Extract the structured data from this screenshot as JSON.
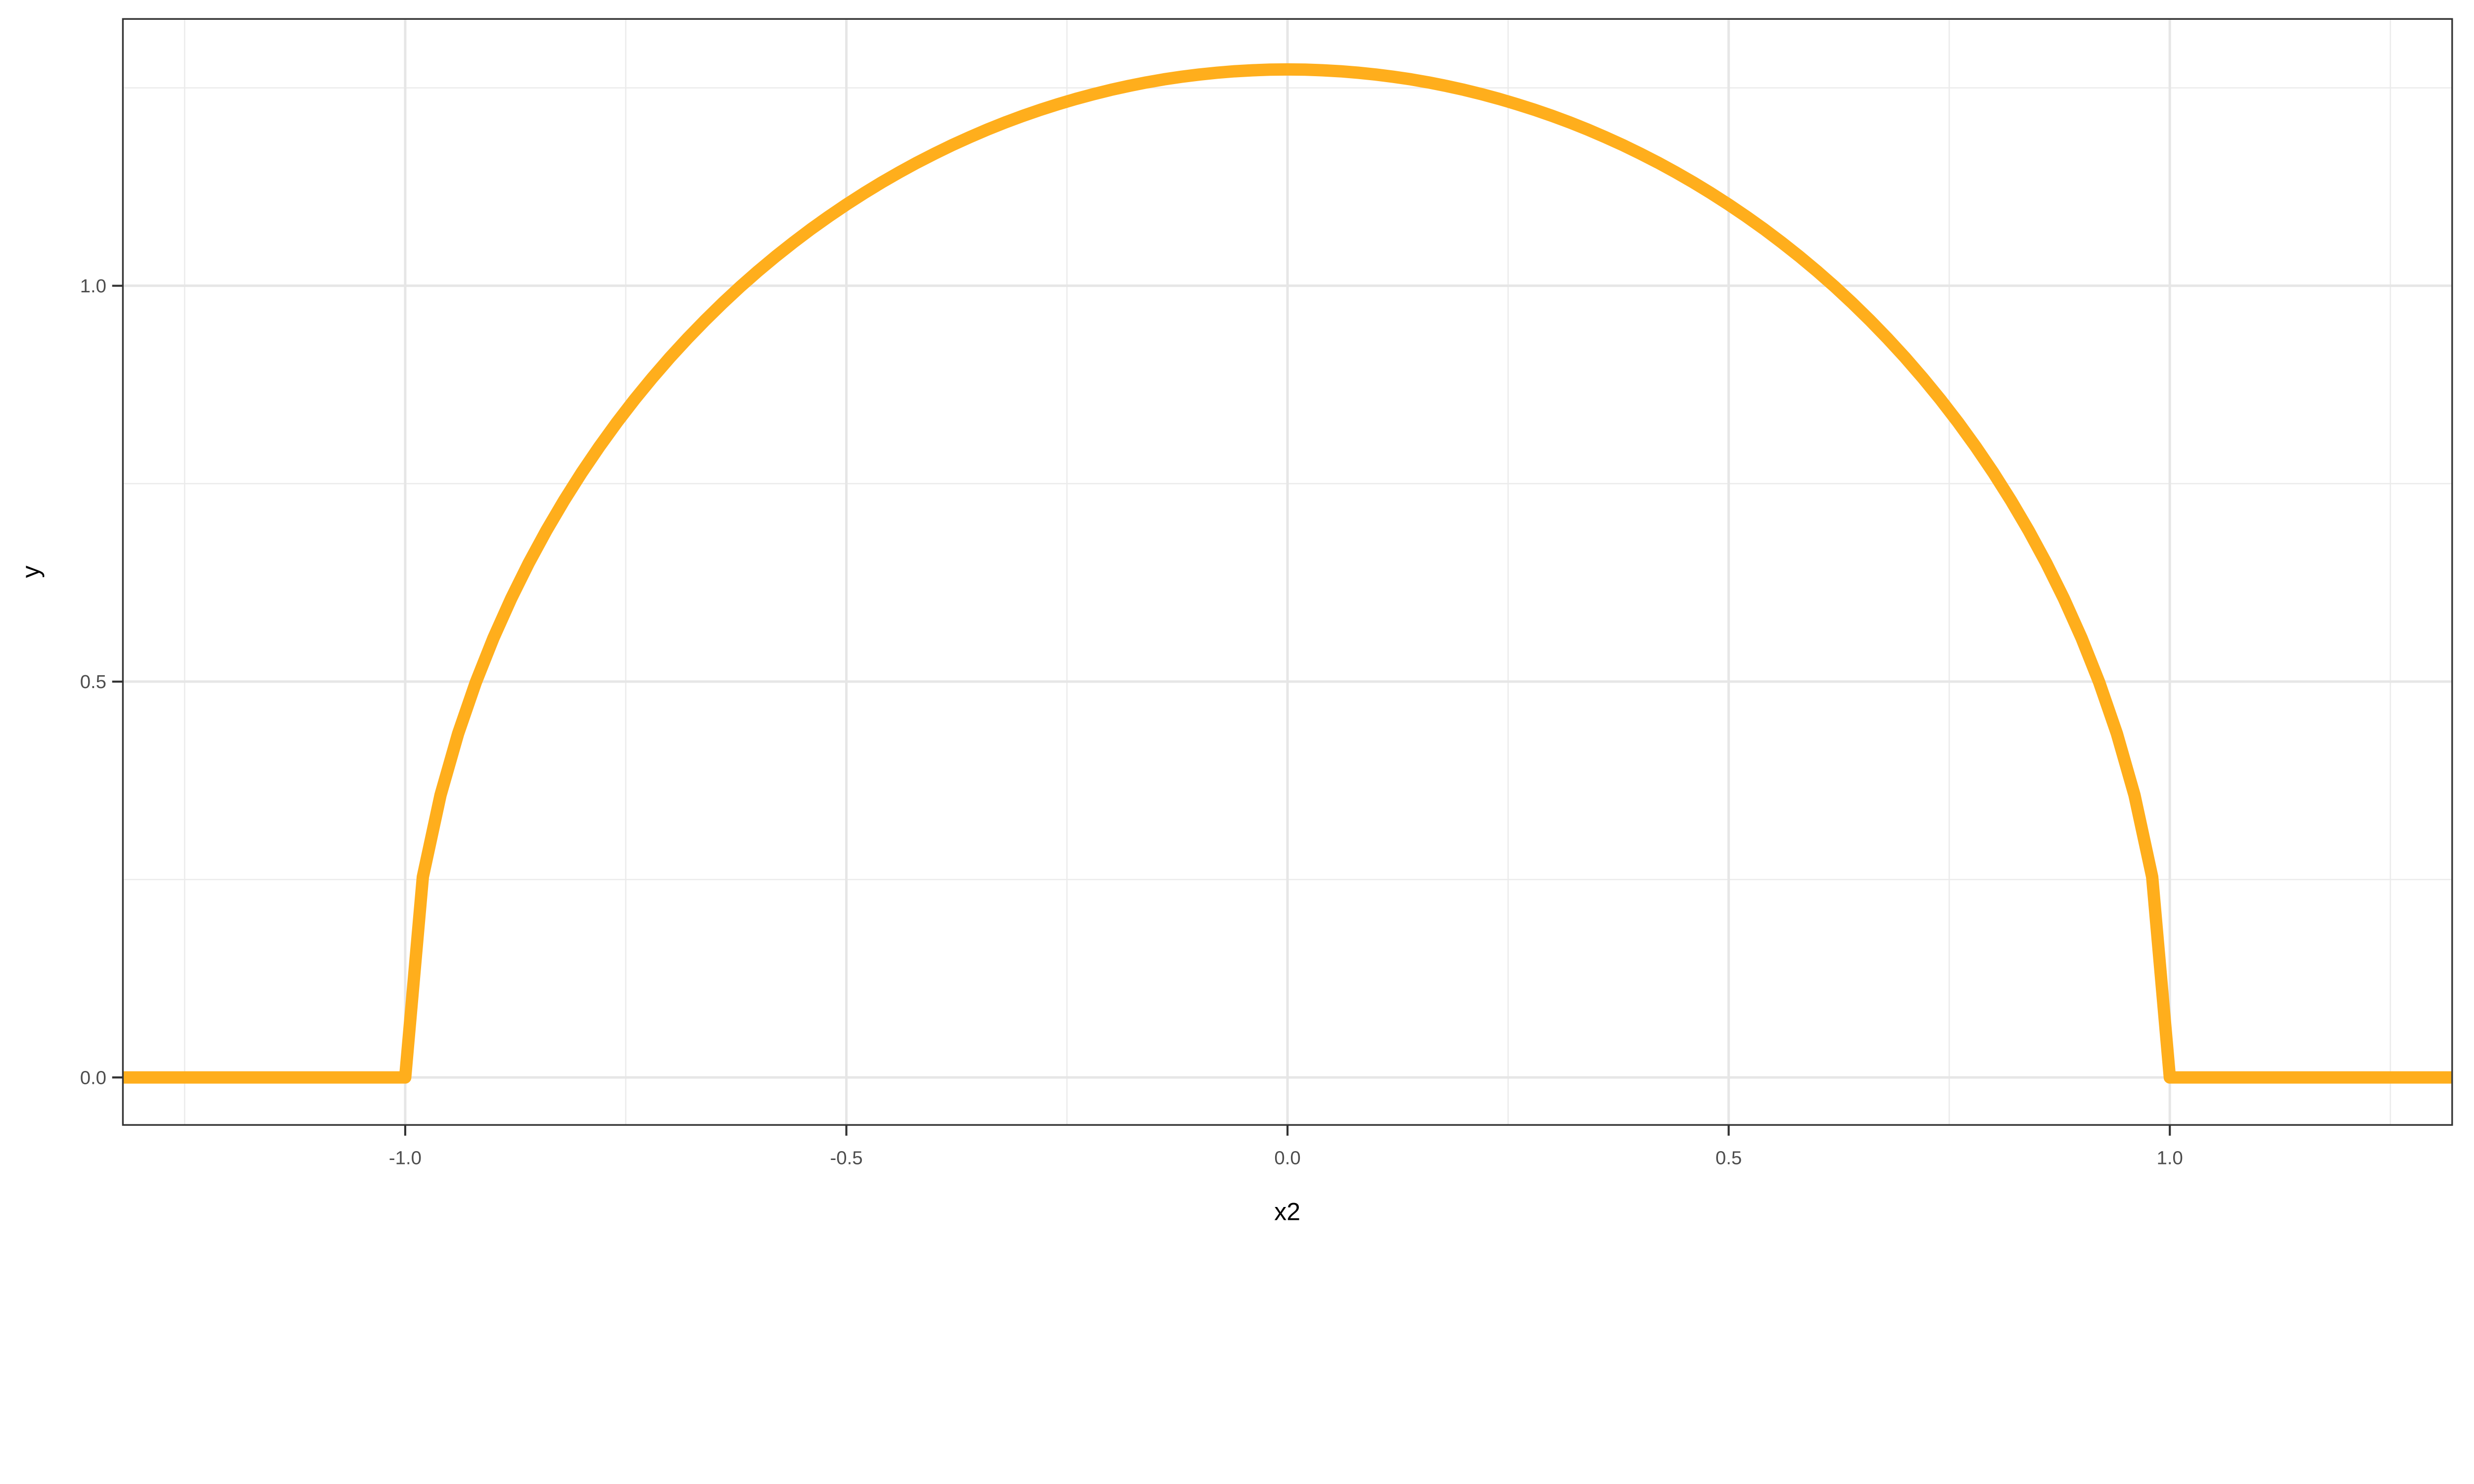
{
  "chart_data": {
    "type": "line",
    "title": "",
    "xlabel": "x2",
    "ylabel": "y",
    "xlim": [
      -1.32,
      1.32
    ],
    "ylim": [
      -0.06,
      1.337
    ],
    "grid": true,
    "x_ticks": [
      -1.0,
      -0.5,
      0.0,
      0.5,
      1.0
    ],
    "x_tick_labels": [
      "-1.0",
      "-0.5",
      "0.0",
      "0.5",
      "1.0"
    ],
    "y_ticks": [
      0.0,
      0.5,
      1.0
    ],
    "y_tick_labels": [
      "0.0",
      "0.5",
      "1.0"
    ],
    "line_color": "#FFAE1C",
    "series": [
      {
        "x": [
          -1.32,
          -1.0,
          -0.98,
          -0.96,
          -0.94,
          -0.92,
          -0.9,
          -0.88,
          -0.86,
          -0.84,
          -0.82,
          -0.8,
          -0.78,
          -0.76,
          -0.74,
          -0.72,
          -0.7,
          -0.68,
          -0.66,
          -0.64,
          -0.62,
          -0.6,
          -0.58,
          -0.56,
          -0.54,
          -0.52,
          -0.5,
          -0.48,
          -0.46,
          -0.44,
          -0.42,
          -0.4,
          -0.38,
          -0.36,
          -0.34,
          -0.32,
          -0.3,
          -0.28,
          -0.26,
          -0.24,
          -0.22,
          -0.2,
          -0.18,
          -0.16,
          -0.14,
          -0.12,
          -0.1,
          -0.08,
          -0.06,
          -0.04,
          -0.02,
          0.0,
          0.02,
          0.04,
          0.06,
          0.08,
          0.1,
          0.12,
          0.14,
          0.16,
          0.18,
          0.2,
          0.22,
          0.24,
          0.26,
          0.28,
          0.3,
          0.32,
          0.34,
          0.36,
          0.38,
          0.4,
          0.42,
          0.44,
          0.46,
          0.48,
          0.5,
          0.52,
          0.54,
          0.56,
          0.58,
          0.6,
          0.62,
          0.64,
          0.66,
          0.68,
          0.7,
          0.72,
          0.74,
          0.76,
          0.78,
          0.8,
          0.82,
          0.84,
          0.86,
          0.88,
          0.9,
          0.92,
          0.94,
          0.96,
          0.98,
          1.0,
          1.32
        ],
        "y": [
          0,
          0,
          0.2534,
          0.3565,
          0.4344,
          0.499,
          0.555,
          0.6047,
          0.6497,
          0.6908,
          0.7287,
          0.7639,
          0.7967,
          0.8275,
          0.8564,
          0.8836,
          0.9093,
          0.9335,
          0.9565,
          0.9783,
          0.999,
          1.0186,
          1.0372,
          1.0548,
          1.0716,
          1.0875,
          1.1026,
          1.1169,
          1.1305,
          1.1433,
          1.1555,
          1.1669,
          1.1777,
          1.1878,
          1.1974,
          1.2063,
          1.2146,
          1.2223,
          1.2294,
          1.236,
          1.242,
          1.2475,
          1.2524,
          1.2568,
          1.2607,
          1.264,
          1.2668,
          1.2691,
          1.2709,
          1.2722,
          1.273,
          1.2732,
          1.273,
          1.2722,
          1.2709,
          1.2691,
          1.2668,
          1.264,
          1.2607,
          1.2568,
          1.2524,
          1.2475,
          1.242,
          1.236,
          1.2294,
          1.2223,
          1.2146,
          1.2063,
          1.1974,
          1.1878,
          1.1777,
          1.1669,
          1.1555,
          1.1433,
          1.1305,
          1.1169,
          1.1026,
          1.0875,
          1.0716,
          1.0548,
          1.0372,
          1.0186,
          0.999,
          0.9783,
          0.9565,
          0.9335,
          0.9093,
          0.8836,
          0.8564,
          0.8275,
          0.7967,
          0.7639,
          0.7287,
          0.6908,
          0.6497,
          0.6047,
          0.555,
          0.499,
          0.4344,
          0.3565,
          0.2534,
          0,
          0
        ]
      }
    ]
  }
}
